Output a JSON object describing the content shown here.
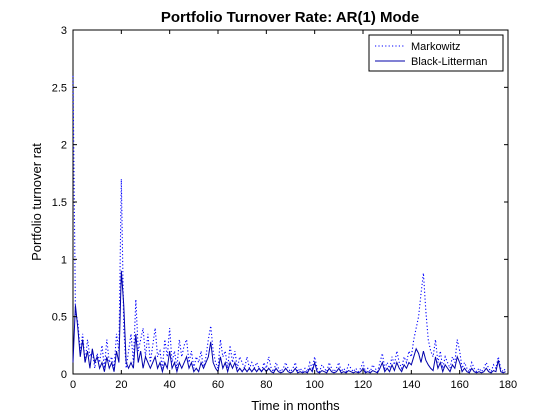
{
  "chart_data": {
    "type": "line",
    "title": "Portfolio Turnover Rate: AR(1) Mode",
    "xlabel": "Time in months",
    "ylabel": "Portfolio turnover rat",
    "xlim": [
      0,
      180
    ],
    "ylim": [
      0,
      3
    ],
    "xticks": [
      0,
      20,
      40,
      60,
      80,
      100,
      120,
      140,
      160,
      180
    ],
    "yticks": [
      0,
      0.5,
      1,
      1.5,
      2,
      2.5,
      3
    ],
    "ytick_labels": [
      "0",
      "0.5",
      "1",
      "1.5",
      "2",
      "2.5",
      "3"
    ],
    "grid": false,
    "legend_position": "top-right",
    "series": [
      {
        "name": "Markowitz",
        "color": "#0000ff",
        "dash": "dotted",
        "x": [
          0,
          1,
          2,
          3,
          4,
          5,
          6,
          7,
          8,
          9,
          10,
          11,
          12,
          13,
          14,
          15,
          16,
          17,
          18,
          19,
          20,
          21,
          22,
          23,
          24,
          25,
          26,
          27,
          28,
          29,
          30,
          31,
          32,
          33,
          34,
          35,
          36,
          37,
          38,
          39,
          40,
          41,
          42,
          43,
          44,
          45,
          46,
          47,
          48,
          49,
          50,
          51,
          52,
          53,
          54,
          55,
          56,
          57,
          58,
          59,
          60,
          61,
          62,
          63,
          64,
          65,
          66,
          67,
          68,
          69,
          70,
          71,
          72,
          73,
          74,
          75,
          76,
          77,
          78,
          79,
          80,
          81,
          82,
          83,
          84,
          85,
          86,
          87,
          88,
          89,
          90,
          91,
          92,
          93,
          94,
          95,
          96,
          97,
          98,
          99,
          100,
          101,
          102,
          103,
          104,
          105,
          106,
          107,
          108,
          109,
          110,
          111,
          112,
          113,
          114,
          115,
          116,
          117,
          118,
          119,
          120,
          121,
          122,
          123,
          124,
          125,
          126,
          127,
          128,
          129,
          130,
          131,
          132,
          133,
          134,
          135,
          136,
          137,
          138,
          139,
          140,
          141,
          142,
          143,
          144,
          145,
          146,
          147,
          148,
          149,
          150,
          151,
          152,
          153,
          154,
          155,
          156,
          157,
          158,
          159,
          160,
          161,
          162,
          163,
          164,
          165,
          166,
          167,
          168,
          169,
          170,
          171,
          172,
          173,
          174,
          175,
          176,
          177,
          178,
          179
        ],
        "y": [
          2.6,
          0.55,
          0.45,
          0.2,
          0.35,
          0.1,
          0.3,
          0.15,
          0.2,
          0.05,
          0.18,
          0.1,
          0.25,
          0.05,
          0.3,
          0.1,
          0.15,
          0.05,
          0.35,
          0.2,
          1.7,
          0.4,
          0.05,
          0.2,
          0.35,
          0.1,
          0.65,
          0.2,
          0.3,
          0.4,
          0.15,
          0.35,
          0.1,
          0.25,
          0.4,
          0.15,
          0.2,
          0.05,
          0.3,
          0.15,
          0.4,
          0.1,
          0.2,
          0.05,
          0.3,
          0.15,
          0.25,
          0.3,
          0.1,
          0.2,
          0.05,
          0.15,
          0.1,
          0.2,
          0.05,
          0.15,
          0.3,
          0.42,
          0.2,
          0.1,
          0.05,
          0.3,
          0.15,
          0.2,
          0.05,
          0.25,
          0.1,
          0.2,
          0.05,
          0.15,
          0.1,
          0.05,
          0.15,
          0.05,
          0.1,
          0.05,
          0.1,
          0.05,
          0.02,
          0.1,
          0.05,
          0.15,
          0.05,
          0.02,
          0.1,
          0.05,
          0.02,
          0.05,
          0.1,
          0.05,
          0.02,
          0.05,
          0.1,
          0.02,
          0.05,
          0.02,
          0.05,
          0.02,
          0.1,
          0.05,
          0.15,
          0.05,
          0.02,
          0.08,
          0.05,
          0.02,
          0.1,
          0.05,
          0.02,
          0.05,
          0.1,
          0.02,
          0.05,
          0.02,
          0.08,
          0.05,
          0.02,
          0.05,
          0.02,
          0.05,
          0.1,
          0.02,
          0.05,
          0.02,
          0.08,
          0.05,
          0.02,
          0.1,
          0.18,
          0.05,
          0.1,
          0.05,
          0.15,
          0.08,
          0.2,
          0.1,
          0.05,
          0.15,
          0.1,
          0.2,
          0.15,
          0.3,
          0.4,
          0.5,
          0.7,
          0.88,
          0.55,
          0.3,
          0.2,
          0.15,
          0.3,
          0.1,
          0.2,
          0.05,
          0.15,
          0.1,
          0.05,
          0.15,
          0.1,
          0.3,
          0.2,
          0.05,
          0.1,
          0.05,
          0.02,
          0.1,
          0.05,
          0.02,
          0.05,
          0.02,
          0.05,
          0.1,
          0.05,
          0.02,
          0.08,
          0.05,
          0.15,
          0.05,
          0.02,
          0.05
        ]
      },
      {
        "name": "Black-Litterman",
        "color": "#0000aa",
        "dash": "solid",
        "x": [
          0,
          1,
          2,
          3,
          4,
          5,
          6,
          7,
          8,
          9,
          10,
          11,
          12,
          13,
          14,
          15,
          16,
          17,
          18,
          19,
          20,
          21,
          22,
          23,
          24,
          25,
          26,
          27,
          28,
          29,
          30,
          31,
          32,
          33,
          34,
          35,
          36,
          37,
          38,
          39,
          40,
          41,
          42,
          43,
          44,
          45,
          46,
          47,
          48,
          49,
          50,
          51,
          52,
          53,
          54,
          55,
          56,
          57,
          58,
          59,
          60,
          61,
          62,
          63,
          64,
          65,
          66,
          67,
          68,
          69,
          70,
          71,
          72,
          73,
          74,
          75,
          76,
          77,
          78,
          79,
          80,
          81,
          82,
          83,
          84,
          85,
          86,
          87,
          88,
          89,
          90,
          91,
          92,
          93,
          94,
          95,
          96,
          97,
          98,
          99,
          100,
          101,
          102,
          103,
          104,
          105,
          106,
          107,
          108,
          109,
          110,
          111,
          112,
          113,
          114,
          115,
          116,
          117,
          118,
          119,
          120,
          121,
          122,
          123,
          124,
          125,
          126,
          127,
          128,
          129,
          130,
          131,
          132,
          133,
          134,
          135,
          136,
          137,
          138,
          139,
          140,
          141,
          142,
          143,
          144,
          145,
          146,
          147,
          148,
          149,
          150,
          151,
          152,
          153,
          154,
          155,
          156,
          157,
          158,
          159,
          160,
          161,
          162,
          163,
          164,
          165,
          166,
          167,
          168,
          169,
          170,
          171,
          172,
          173,
          174,
          175,
          176,
          177,
          178,
          179
        ],
        "y": [
          0.1,
          0.6,
          0.4,
          0.15,
          0.3,
          0.1,
          0.2,
          0.05,
          0.22,
          0.1,
          0.15,
          0.05,
          0.1,
          0.02,
          0.15,
          0.05,
          0.1,
          0.02,
          0.2,
          0.1,
          0.9,
          0.6,
          0.1,
          0.05,
          0.1,
          0.05,
          0.35,
          0.1,
          0.2,
          0.05,
          0.15,
          0.1,
          0.05,
          0.1,
          0.15,
          0.05,
          0.1,
          0.02,
          0.1,
          0.05,
          0.2,
          0.05,
          0.1,
          0.02,
          0.1,
          0.05,
          0.1,
          0.15,
          0.05,
          0.1,
          0.02,
          0.05,
          0.02,
          0.1,
          0.05,
          0.1,
          0.15,
          0.28,
          0.1,
          0.05,
          0.02,
          0.15,
          0.05,
          0.1,
          0.02,
          0.1,
          0.05,
          0.1,
          0.02,
          0.05,
          0.02,
          0.05,
          0.02,
          0.05,
          0.02,
          0.05,
          0.02,
          0.05,
          0.02,
          0.05,
          0.02,
          0.05,
          0.02,
          0.01,
          0.05,
          0.02,
          0.01,
          0.02,
          0.05,
          0.02,
          0.01,
          0.02,
          0.05,
          0.01,
          0.02,
          0.01,
          0.02,
          0.01,
          0.05,
          0.02,
          0.1,
          0.02,
          0.01,
          0.03,
          0.02,
          0.01,
          0.05,
          0.02,
          0.01,
          0.02,
          0.05,
          0.01,
          0.02,
          0.01,
          0.03,
          0.02,
          0.01,
          0.02,
          0.01,
          0.02,
          0.05,
          0.01,
          0.02,
          0.01,
          0.03,
          0.02,
          0.01,
          0.05,
          0.1,
          0.02,
          0.05,
          0.02,
          0.08,
          0.03,
          0.1,
          0.05,
          0.02,
          0.08,
          0.05,
          0.1,
          0.08,
          0.15,
          0.22,
          0.18,
          0.1,
          0.2,
          0.12,
          0.08,
          0.05,
          0.03,
          0.15,
          0.05,
          0.1,
          0.02,
          0.08,
          0.05,
          0.02,
          0.08,
          0.05,
          0.15,
          0.1,
          0.02,
          0.05,
          0.02,
          0.01,
          0.05,
          0.02,
          0.01,
          0.02,
          0.01,
          0.02,
          0.05,
          0.02,
          0.01,
          0.03,
          0.02,
          0.12,
          0.02,
          0.01,
          0.02
        ]
      }
    ]
  }
}
